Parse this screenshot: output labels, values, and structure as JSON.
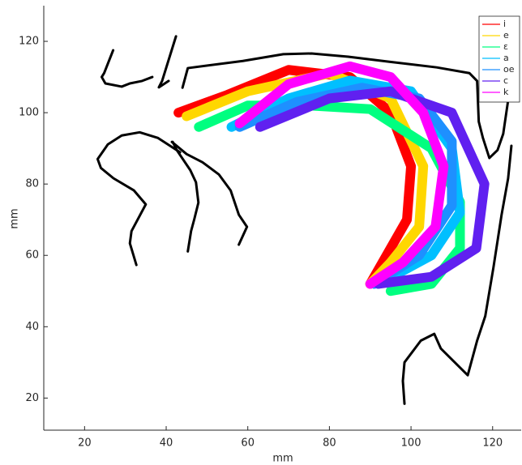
{
  "chart_data": {
    "type": "line",
    "x_label": "mm",
    "y_label": "mm",
    "xlim": [
      10,
      127
    ],
    "ylim": [
      11,
      130
    ],
    "xticks": [
      20,
      40,
      60,
      80,
      100,
      120
    ],
    "yticks": [
      20,
      40,
      60,
      80,
      100,
      120
    ],
    "legend": "upper right",
    "line_width": 12,
    "series": [
      {
        "name": "i",
        "color": "#ff0000",
        "x": [
          43,
          55,
          70,
          85,
          95,
          100,
          99,
          93,
          90
        ],
        "values": [
          100,
          105,
          112,
          110,
          100,
          85,
          70,
          58,
          52
        ]
      },
      {
        "name": "e",
        "color": "#ffd700",
        "x": [
          45,
          60,
          80,
          95,
          103,
          102,
          95,
          90
        ],
        "values": [
          99,
          106,
          111,
          104,
          85,
          68,
          58,
          52
        ]
      },
      {
        "name": "ε",
        "color": "#00ff80",
        "x": [
          48,
          60,
          75,
          90,
          105,
          112,
          112,
          105,
          95
        ],
        "values": [
          96,
          102,
          102,
          101,
          90,
          75,
          62,
          52,
          50
        ]
      },
      {
        "name": "a",
        "color": "#00bfff",
        "x": [
          56,
          70,
          85,
          100,
          110,
          112,
          105,
          92
        ],
        "values": [
          96,
          104,
          109,
          106,
          90,
          72,
          60,
          52
        ]
      },
      {
        "name": "oe",
        "color": "#1e90ff",
        "x": [
          58,
          72,
          88,
          102,
          110,
          110,
          102,
          91
        ],
        "values": [
          96,
          103,
          107,
          104,
          92,
          74,
          60,
          52
        ]
      },
      {
        "name": "c",
        "color": "#6020f0",
        "x": [
          63,
          80,
          95,
          110,
          118,
          116,
          105,
          92
        ],
        "values": [
          96,
          104,
          106,
          100,
          80,
          62,
          54,
          52
        ]
      },
      {
        "name": "k",
        "color": "#ff00ff",
        "x": [
          58,
          70,
          85,
          95,
          103,
          108,
          106,
          98,
          90
        ],
        "values": [
          97,
          108,
          113,
          110,
          100,
          85,
          68,
          58,
          52
        ]
      }
    ],
    "outlines": [
      {
        "color": "#000000",
        "x": [
          27,
          24.8,
          24.2,
          25.1,
          29.1,
          31.1,
          34.1,
          36.6
        ],
        "values": [
          117.5,
          111.1,
          110,
          108.2,
          107.3,
          108.2,
          108.9,
          110
        ]
      },
      {
        "color": "#000000",
        "x": [
          32.7,
          31.1,
          31.5,
          35,
          32.1,
          27.1,
          24,
          23.2,
          25.7,
          29.1,
          33.5,
          38,
          43.4
        ],
        "values": [
          57.3,
          63.4,
          66.8,
          74.3,
          78.2,
          81.6,
          84.5,
          87,
          91.1,
          93.6,
          94.5,
          92.9,
          88.9
        ]
      },
      {
        "color": "#000000",
        "x": [
          42.4,
          39,
          38.2,
          40.6
        ],
        "values": [
          121.4,
          108.9,
          107.1,
          108.9
        ]
      },
      {
        "color": "#000000",
        "x": [
          41.6,
          42.6,
          45.9,
          47.3,
          47.9,
          46.9,
          46.1,
          45.3
        ],
        "values": [
          91.8,
          89.5,
          83.9,
          80.5,
          74.8,
          70.2,
          66.8,
          61.1
        ]
      },
      {
        "color": "#000000",
        "x": [
          41.4,
          45,
          48.9,
          52.9,
          55.8,
          57.8,
          59.8,
          57.8
        ],
        "values": [
          91.8,
          88.4,
          86.1,
          82.7,
          78.2,
          71.4,
          68,
          63
        ]
      },
      {
        "color": "#000000",
        "x": [
          44,
          45.3,
          58.8,
          68.7,
          75.6,
          84.6,
          94.5,
          106.3,
          114.3,
          116.2,
          116.6,
          117.6,
          119.2,
          121.2,
          122.6,
          124.2,
          124.6
        ],
        "values": [
          107,
          112.5,
          114.5,
          116.4,
          116.6,
          115.7,
          114.3,
          112.7,
          111.1,
          108.9,
          97.5,
          93,
          87.3,
          89.5,
          94.1,
          106.6,
          111.1
        ]
      },
      {
        "color": "#000000",
        "x": [
          124.6,
          123.8,
          122.2,
          120.2,
          118.2,
          116.2,
          113.9,
          110.3,
          107.3,
          105.7,
          102.4,
          98.4,
          98,
          98.4
        ],
        "values": [
          90.7,
          81.6,
          71.4,
          56.6,
          43,
          36.1,
          26.4,
          30.5,
          33.9,
          38,
          36.1,
          30,
          24.8,
          18.4
        ]
      }
    ]
  }
}
